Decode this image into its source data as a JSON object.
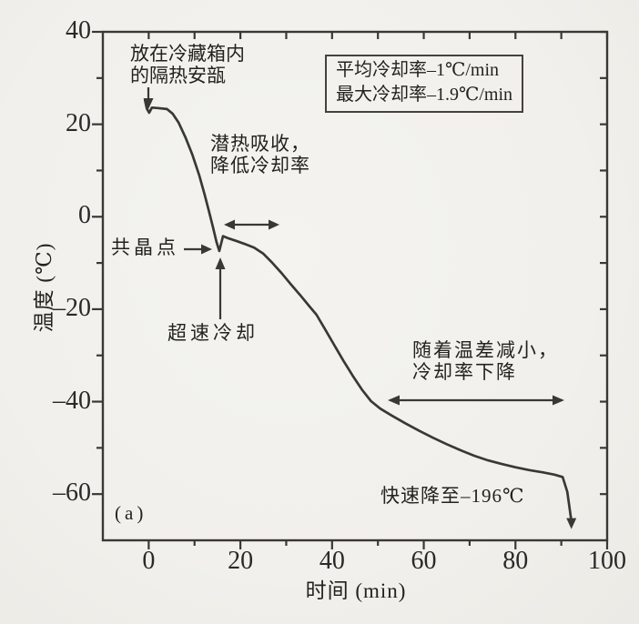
{
  "figure": {
    "panel_label": "(a)",
    "background_color": "#f1f0ec",
    "ink_color": "#3a3834"
  },
  "chart_data": {
    "type": "line",
    "title": "",
    "xlabel": "时间 (min)",
    "ylabel": "温度 (℃)",
    "xlim": [
      -10,
      100
    ],
    "ylim": [
      -70,
      40
    ],
    "grid": false,
    "xticks": [
      0,
      20,
      40,
      60,
      80,
      100
    ],
    "xtick_labels": [
      "0",
      "20",
      "40",
      "60",
      "80",
      "100"
    ],
    "xticks_minor": [
      10,
      30,
      50,
      70,
      90
    ],
    "yticks": [
      40,
      20,
      0,
      -20,
      -40,
      -60
    ],
    "ytick_labels": [
      "40",
      "20",
      "0",
      "–20",
      "–40",
      "–60"
    ],
    "yticks_minor": [
      30,
      10,
      -10,
      -30,
      -50
    ],
    "series": [
      {
        "name": "cooling curve",
        "color": "#3a3834",
        "points": [
          [
            -0.8,
            25.2
          ],
          [
            -0.4,
            23.4
          ],
          [
            0.1,
            22.5
          ],
          [
            0.7,
            23.6
          ],
          [
            2,
            23.5
          ],
          [
            4,
            23.3
          ],
          [
            5.2,
            22.3
          ],
          [
            6.5,
            20.4
          ],
          [
            8,
            17.2
          ],
          [
            9.5,
            13.5
          ],
          [
            11,
            9
          ],
          [
            12.2,
            4.8
          ],
          [
            13.2,
            1
          ],
          [
            14,
            -2.2
          ],
          [
            14.8,
            -5.5
          ],
          [
            15.4,
            -7.4
          ],
          [
            16.2,
            -4.2
          ],
          [
            17.5,
            -4.7
          ],
          [
            19,
            -5.2
          ],
          [
            21,
            -5.9
          ],
          [
            23,
            -6.7
          ],
          [
            25,
            -8
          ],
          [
            27,
            -10
          ],
          [
            29,
            -12.2
          ],
          [
            31,
            -14.6
          ],
          [
            33,
            -16.9
          ],
          [
            35,
            -19.3
          ],
          [
            36.6,
            -21.2
          ],
          [
            38.5,
            -24.4
          ],
          [
            40.5,
            -27.8
          ],
          [
            42.5,
            -31.2
          ],
          [
            44.5,
            -34.4
          ],
          [
            46.5,
            -37.4
          ],
          [
            48.5,
            -39.9
          ],
          [
            50.5,
            -41.5
          ],
          [
            53,
            -43
          ],
          [
            56,
            -44.7
          ],
          [
            59,
            -46.3
          ],
          [
            62,
            -47.8
          ],
          [
            65,
            -49.2
          ],
          [
            68,
            -50.5
          ],
          [
            71,
            -51.7
          ],
          [
            74,
            -52.7
          ],
          [
            77,
            -53.5
          ],
          [
            80,
            -54.2
          ],
          [
            83,
            -54.8
          ],
          [
            86,
            -55.3
          ],
          [
            88.5,
            -55.8
          ],
          [
            90.3,
            -56.3
          ],
          [
            91.3,
            -59.5
          ],
          [
            92.2,
            -65.8
          ]
        ]
      }
    ],
    "legend_box": {
      "lines": [
        "平均冷却率–1℃/min",
        "最大冷却率–1.9℃/min"
      ]
    },
    "annotations": [
      {
        "id": "ampoule",
        "lines": [
          "放在冷藏箱内",
          "的隔热安瓿"
        ]
      },
      {
        "id": "latent",
        "lines": [
          "潜热吸收，",
          "降低冷却率"
        ]
      },
      {
        "id": "eutectic",
        "lines": [
          "共晶点"
        ]
      },
      {
        "id": "supercool",
        "lines": [
          "超速冷却"
        ]
      },
      {
        "id": "tempdiff",
        "lines": [
          "随着温差减小，",
          "冷却率下降"
        ]
      },
      {
        "id": "rapid",
        "lines": [
          "快速降至–196℃"
        ]
      }
    ],
    "stats": {
      "average_cooling_rate": "–1℃/min",
      "max_cooling_rate": "–1.9℃/min",
      "final_plunge_label": "快速降至–196℃"
    }
  }
}
